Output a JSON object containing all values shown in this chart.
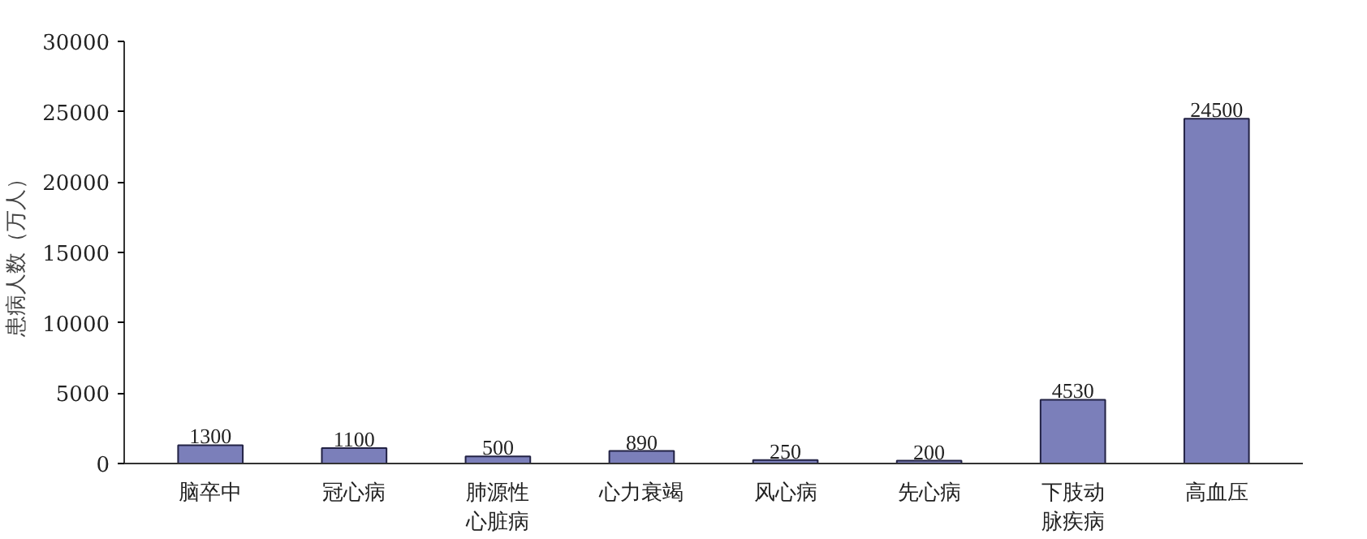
{
  "chart_data": {
    "type": "bar",
    "ylabel": "患病人数（万人）",
    "categories": [
      "脑卒中",
      "冠心病",
      "肺源性心脏病",
      "心力衰竭",
      "风心病",
      "先心病",
      "下肢动脉疾病",
      "高血压"
    ],
    "values": [
      1300,
      1100,
      500,
      890,
      250,
      200,
      4530,
      24500
    ],
    "color": "#7b7fba",
    "ylim": [
      0,
      30000
    ],
    "yticks": [
      0,
      5000,
      10000,
      15000,
      20000,
      25000,
      30000
    ],
    "data_labels": true,
    "grid": false
  }
}
